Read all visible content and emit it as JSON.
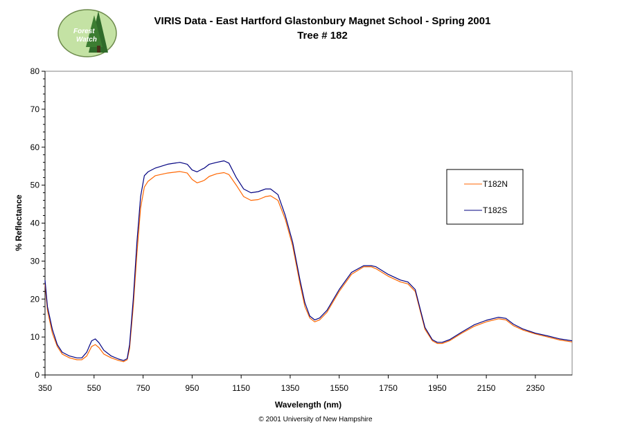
{
  "logo": {
    "text_line1": "Forest",
    "text_line2": "Watch",
    "icon": "forest-watch-logo"
  },
  "footer": {
    "copyright": "© 2001 University of New Hampshire"
  },
  "chart_data": {
    "type": "line",
    "title": "VIRIS Data - East Hartford Glastonbury Magnet School - Spring 2001",
    "subtitle": "Tree # 182",
    "xlabel": "Wavelength (nm)",
    "ylabel": "% Reflectance",
    "xlim": [
      350,
      2500
    ],
    "ylim": [
      0,
      80
    ],
    "x_ticks": [
      350,
      550,
      750,
      950,
      1150,
      1350,
      1550,
      1750,
      1950,
      2150,
      2350
    ],
    "y_ticks": [
      0,
      10,
      20,
      30,
      40,
      50,
      60,
      70,
      80
    ],
    "grid": false,
    "legend": "right",
    "series": [
      {
        "name": "T182N",
        "color": "#ff6600",
        "points": [
          [
            350,
            24
          ],
          [
            360,
            17
          ],
          [
            380,
            11
          ],
          [
            400,
            7.5
          ],
          [
            420,
            5.5
          ],
          [
            450,
            4.5
          ],
          [
            480,
            4
          ],
          [
            500,
            4
          ],
          [
            520,
            5
          ],
          [
            540,
            7.5
          ],
          [
            555,
            8
          ],
          [
            570,
            7.2
          ],
          [
            590,
            5.5
          ],
          [
            620,
            4.5
          ],
          [
            650,
            3.8
          ],
          [
            670,
            3.5
          ],
          [
            685,
            4
          ],
          [
            695,
            7
          ],
          [
            710,
            18
          ],
          [
            725,
            32
          ],
          [
            740,
            44
          ],
          [
            755,
            49.5
          ],
          [
            770,
            51
          ],
          [
            800,
            52.5
          ],
          [
            850,
            53.2
          ],
          [
            900,
            53.6
          ],
          [
            930,
            53.2
          ],
          [
            950,
            51.5
          ],
          [
            970,
            50.6
          ],
          [
            990,
            51
          ],
          [
            1000,
            51.3
          ],
          [
            1020,
            52.3
          ],
          [
            1050,
            53
          ],
          [
            1080,
            53.3
          ],
          [
            1100,
            52.8
          ],
          [
            1130,
            50
          ],
          [
            1160,
            47
          ],
          [
            1190,
            46
          ],
          [
            1220,
            46.2
          ],
          [
            1250,
            47
          ],
          [
            1270,
            47.2
          ],
          [
            1300,
            46
          ],
          [
            1330,
            41
          ],
          [
            1360,
            34
          ],
          [
            1390,
            24
          ],
          [
            1410,
            18
          ],
          [
            1430,
            15
          ],
          [
            1450,
            14
          ],
          [
            1470,
            14.5
          ],
          [
            1500,
            16.5
          ],
          [
            1550,
            22
          ],
          [
            1600,
            26.5
          ],
          [
            1650,
            28.5
          ],
          [
            1680,
            28.5
          ],
          [
            1700,
            28
          ],
          [
            1750,
            26
          ],
          [
            1800,
            24.5
          ],
          [
            1830,
            24
          ],
          [
            1860,
            22
          ],
          [
            1880,
            17
          ],
          [
            1900,
            12
          ],
          [
            1930,
            9
          ],
          [
            1950,
            8.3
          ],
          [
            1970,
            8.3
          ],
          [
            2000,
            9
          ],
          [
            2050,
            11
          ],
          [
            2100,
            12.8
          ],
          [
            2150,
            14
          ],
          [
            2200,
            14.8
          ],
          [
            2230,
            14.5
          ],
          [
            2260,
            13
          ],
          [
            2300,
            11.8
          ],
          [
            2350,
            10.8
          ],
          [
            2400,
            10
          ],
          [
            2450,
            9.2
          ],
          [
            2500,
            8.7
          ]
        ]
      },
      {
        "name": "T182S",
        "color": "#000080",
        "points": [
          [
            350,
            25
          ],
          [
            360,
            18
          ],
          [
            380,
            12
          ],
          [
            400,
            8
          ],
          [
            420,
            6
          ],
          [
            450,
            5
          ],
          [
            480,
            4.5
          ],
          [
            500,
            4.5
          ],
          [
            520,
            6
          ],
          [
            540,
            9
          ],
          [
            555,
            9.5
          ],
          [
            570,
            8.5
          ],
          [
            590,
            6.5
          ],
          [
            620,
            5
          ],
          [
            650,
            4.2
          ],
          [
            670,
            3.8
          ],
          [
            685,
            4.3
          ],
          [
            695,
            8
          ],
          [
            710,
            20
          ],
          [
            725,
            35
          ],
          [
            740,
            47
          ],
          [
            755,
            52.5
          ],
          [
            770,
            53.5
          ],
          [
            800,
            54.5
          ],
          [
            850,
            55.5
          ],
          [
            900,
            56
          ],
          [
            930,
            55.5
          ],
          [
            950,
            54
          ],
          [
            970,
            53.5
          ],
          [
            990,
            54.2
          ],
          [
            1000,
            54.5
          ],
          [
            1020,
            55.5
          ],
          [
            1050,
            56
          ],
          [
            1080,
            56.4
          ],
          [
            1100,
            55.8
          ],
          [
            1130,
            52
          ],
          [
            1160,
            49
          ],
          [
            1190,
            48
          ],
          [
            1220,
            48.3
          ],
          [
            1250,
            49
          ],
          [
            1270,
            49
          ],
          [
            1300,
            47.5
          ],
          [
            1330,
            42
          ],
          [
            1360,
            35
          ],
          [
            1390,
            25
          ],
          [
            1410,
            19
          ],
          [
            1430,
            15.5
          ],
          [
            1450,
            14.5
          ],
          [
            1470,
            15
          ],
          [
            1500,
            17
          ],
          [
            1550,
            22.5
          ],
          [
            1600,
            27
          ],
          [
            1650,
            28.8
          ],
          [
            1680,
            28.8
          ],
          [
            1700,
            28.5
          ],
          [
            1750,
            26.5
          ],
          [
            1800,
            25
          ],
          [
            1830,
            24.5
          ],
          [
            1860,
            22.5
          ],
          [
            1880,
            17.5
          ],
          [
            1900,
            12.5
          ],
          [
            1930,
            9.3
          ],
          [
            1950,
            8.6
          ],
          [
            1970,
            8.6
          ],
          [
            2000,
            9.3
          ],
          [
            2050,
            11.3
          ],
          [
            2100,
            13.2
          ],
          [
            2150,
            14.4
          ],
          [
            2200,
            15.2
          ],
          [
            2230,
            14.9
          ],
          [
            2260,
            13.4
          ],
          [
            2300,
            12.1
          ],
          [
            2350,
            11
          ],
          [
            2400,
            10.3
          ],
          [
            2450,
            9.5
          ],
          [
            2500,
            9
          ]
        ]
      }
    ]
  }
}
